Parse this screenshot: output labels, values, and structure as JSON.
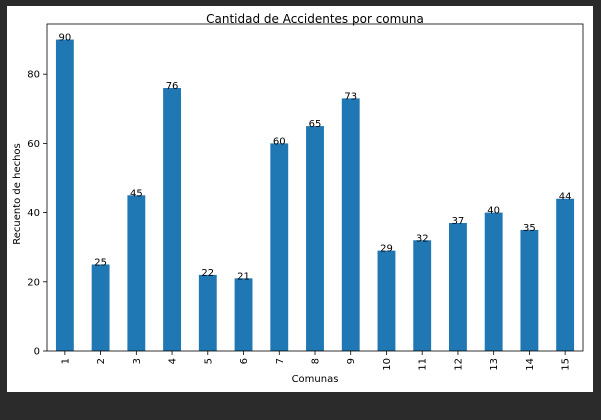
{
  "chart_data": {
    "type": "bar",
    "title": "Cantidad de Accidentes por comuna",
    "xlabel": "Comunas",
    "ylabel": "Recuento de hechos",
    "categories": [
      "1",
      "2",
      "3",
      "4",
      "5",
      "6",
      "7",
      "8",
      "9",
      "10",
      "11",
      "12",
      "13",
      "14",
      "15"
    ],
    "values": [
      90,
      25,
      45,
      76,
      22,
      21,
      60,
      65,
      73,
      29,
      32,
      37,
      40,
      35,
      44
    ],
    "ylim": [
      0,
      94.5
    ],
    "yticks": [
      0,
      20,
      40,
      60,
      80
    ],
    "bar_color": "#1f77b4",
    "grid": false,
    "legend": "none",
    "data_labels": true
  }
}
